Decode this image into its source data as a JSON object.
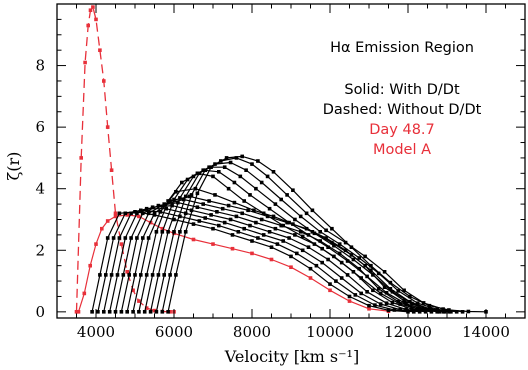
{
  "chart_data": {
    "type": "line",
    "title": "",
    "xlabel": "Velocity [km s⁻¹]",
    "ylabel": "ζ(r)",
    "xlim": [
      3000,
      15000
    ],
    "ylim": [
      -0.2,
      10
    ],
    "xticks": [
      4000,
      6000,
      8000,
      10000,
      12000,
      14000
    ],
    "yticks": [
      0,
      2,
      4,
      6,
      8
    ],
    "grid": false,
    "legend_position": "top-right",
    "annotations": [
      {
        "text": "Hα Emission Region",
        "color": "#000000"
      },
      {
        "text": "Solid: With D/Dt",
        "color": "#000000"
      },
      {
        "text": "Dashed: Without D/Dt",
        "color": "#000000"
      },
      {
        "text": "Day 48.7",
        "color": "#e8303a"
      },
      {
        "text": "Model A",
        "color": "#e8303a"
      }
    ],
    "series": [
      {
        "color": "#e8303a",
        "style": "dashed",
        "marker": "square",
        "x": [
          3500,
          3620,
          3720,
          3800,
          3860,
          3920,
          4000,
          4100,
          4200,
          4300,
          4400,
          4500,
          4650,
          4800,
          4950,
          5100,
          5300,
          5500,
          5700,
          5900,
          6000
        ],
        "y": [
          0,
          5.0,
          8.1,
          9.3,
          9.8,
          9.9,
          9.5,
          8.5,
          7.5,
          6.0,
          4.6,
          3.2,
          2.2,
          1.3,
          0.7,
          0.35,
          0.12,
          0.04,
          0.01,
          0,
          0
        ]
      },
      {
        "color": "#e8303a",
        "style": "solid",
        "marker": "square",
        "x": [
          3550,
          3700,
          3850,
          4000,
          4150,
          4300,
          4500,
          4800,
          5100,
          5400,
          5700,
          6000,
          6500,
          7000,
          7500,
          8000,
          8500,
          9000,
          9500,
          10000,
          10500,
          11000,
          11500
        ],
        "y": [
          0,
          0.6,
          1.5,
          2.2,
          2.7,
          2.95,
          3.1,
          3.15,
          3.1,
          2.9,
          2.7,
          2.55,
          2.35,
          2.2,
          2.05,
          1.9,
          1.7,
          1.45,
          1.1,
          0.7,
          0.35,
          0.1,
          0.02
        ]
      },
      {
        "color": "#000000",
        "style": "solid",
        "marker": "square",
        "x": [
          3900,
          4100,
          4300,
          4600,
          5000,
          5500,
          6000,
          6500,
          7000,
          7500,
          8000,
          8500,
          9000,
          9500,
          10000,
          10500,
          11000,
          11500,
          12000
        ],
        "y": [
          0,
          1.2,
          2.4,
          3.2,
          3.25,
          3.15,
          3.0,
          2.85,
          2.7,
          2.5,
          2.3,
          2.1,
          1.8,
          1.4,
          0.9,
          0.5,
          0.2,
          0.05,
          0
        ]
      },
      {
        "color": "#000000",
        "style": "solid",
        "marker": "square",
        "x": [
          4050,
          4250,
          4450,
          4750,
          5150,
          5650,
          6150,
          6650,
          7150,
          7650,
          8150,
          8650,
          9150,
          9650,
          10150,
          10650,
          11150,
          11650,
          12150
        ],
        "y": [
          0,
          1.2,
          2.4,
          3.2,
          3.3,
          3.25,
          3.1,
          2.95,
          2.8,
          2.6,
          2.4,
          2.2,
          1.9,
          1.5,
          1.0,
          0.55,
          0.22,
          0.06,
          0
        ]
      },
      {
        "color": "#000000",
        "style": "solid",
        "marker": "square",
        "x": [
          4200,
          4400,
          4600,
          4900,
          5300,
          5800,
          6300,
          6800,
          7300,
          7800,
          8300,
          8800,
          9300,
          9800,
          10300,
          10800,
          11300,
          11800,
          12300
        ],
        "y": [
          0,
          1.2,
          2.4,
          3.2,
          3.35,
          3.35,
          3.2,
          3.05,
          2.9,
          2.7,
          2.5,
          2.3,
          2.0,
          1.6,
          1.1,
          0.6,
          0.25,
          0.07,
          0
        ]
      },
      {
        "color": "#000000",
        "style": "solid",
        "marker": "square",
        "x": [
          4350,
          4550,
          4750,
          5050,
          5450,
          5950,
          6450,
          6950,
          7450,
          7950,
          8450,
          8950,
          9450,
          9950,
          10450,
          10950,
          11450,
          11950,
          12450
        ],
        "y": [
          0,
          1.2,
          2.4,
          3.2,
          3.4,
          3.45,
          3.3,
          3.15,
          3.0,
          2.8,
          2.6,
          2.4,
          2.1,
          1.7,
          1.2,
          0.65,
          0.28,
          0.08,
          0
        ]
      },
      {
        "color": "#000000",
        "style": "solid",
        "marker": "square",
        "x": [
          4500,
          4700,
          4900,
          5200,
          5600,
          6100,
          6600,
          7100,
          7600,
          8100,
          8600,
          9100,
          9600,
          10100,
          10600,
          11100,
          11600,
          12100,
          12600
        ],
        "y": [
          0,
          1.2,
          2.4,
          3.2,
          3.45,
          3.55,
          3.4,
          3.25,
          3.1,
          2.9,
          2.7,
          2.5,
          2.2,
          1.8,
          1.3,
          0.7,
          0.3,
          0.09,
          0
        ]
      },
      {
        "color": "#000000",
        "style": "solid",
        "marker": "square",
        "x": [
          4650,
          4850,
          5050,
          5350,
          5750,
          6250,
          6750,
          7250,
          7750,
          8250,
          8750,
          9250,
          9750,
          10250,
          10750,
          11250,
          11750,
          12250,
          12750
        ],
        "y": [
          0,
          1.2,
          2.4,
          3.2,
          3.5,
          3.65,
          3.5,
          3.35,
          3.2,
          3.0,
          2.8,
          2.6,
          2.3,
          1.9,
          1.4,
          0.75,
          0.33,
          0.1,
          0
        ]
      },
      {
        "color": "#000000",
        "style": "solid",
        "marker": "square",
        "x": [
          4800,
          5000,
          5200,
          5500,
          5900,
          6400,
          6900,
          7400,
          7900,
          8400,
          8900,
          9400,
          9900,
          10400,
          10900,
          11400,
          11900,
          12400,
          12900
        ],
        "y": [
          0,
          1.2,
          2.4,
          3.2,
          3.6,
          3.75,
          3.6,
          3.45,
          3.3,
          3.1,
          2.9,
          2.7,
          2.4,
          2.0,
          1.5,
          0.8,
          0.36,
          0.11,
          0
        ]
      },
      {
        "color": "#000000",
        "style": "solid",
        "marker": "square",
        "x": [
          4950,
          5150,
          5350,
          5650,
          6050,
          6550,
          7050,
          7550,
          8050,
          8550,
          9050,
          9550,
          10050,
          10550,
          11050,
          11550,
          12050,
          12550,
          13050
        ],
        "y": [
          0,
          1.2,
          2.4,
          3.25,
          3.9,
          4.0,
          3.8,
          3.55,
          3.3,
          3.1,
          2.85,
          2.6,
          2.25,
          1.85,
          1.35,
          0.75,
          0.33,
          0.1,
          0
        ]
      },
      {
        "color": "#000000",
        "style": "solid",
        "marker": "square",
        "x": [
          5100,
          5300,
          5550,
          5850,
          6200,
          6600,
          7000,
          7400,
          7800,
          8300,
          8800,
          9300,
          9800,
          10300,
          10800,
          11300,
          11800,
          12300,
          12800
        ],
        "y": [
          0,
          1.2,
          2.6,
          3.6,
          4.2,
          4.5,
          4.4,
          4.0,
          3.6,
          3.2,
          2.8,
          2.45,
          2.05,
          1.6,
          1.1,
          0.6,
          0.25,
          0.07,
          0
        ]
      },
      {
        "color": "#000000",
        "style": "solid",
        "marker": "square",
        "x": [
          5250,
          5450,
          5700,
          6000,
          6350,
          6750,
          7150,
          7550,
          7950,
          8450,
          8950,
          9450,
          9950,
          10450,
          10950,
          11450,
          11950,
          12450,
          12950
        ],
        "y": [
          0,
          1.2,
          2.6,
          3.65,
          4.3,
          4.6,
          4.55,
          4.2,
          3.8,
          3.35,
          2.9,
          2.5,
          2.1,
          1.65,
          1.15,
          0.62,
          0.26,
          0.07,
          0
        ]
      },
      {
        "color": "#000000",
        "style": "solid",
        "marker": "square",
        "x": [
          5400,
          5600,
          5850,
          6150,
          6500,
          6900,
          7300,
          7700,
          8100,
          8600,
          9100,
          9600,
          10100,
          10600,
          11100,
          11600,
          12100,
          12600,
          13100
        ],
        "y": [
          0,
          1.2,
          2.6,
          3.7,
          4.4,
          4.7,
          4.7,
          4.4,
          4.0,
          3.5,
          3.0,
          2.55,
          2.15,
          1.7,
          1.2,
          0.65,
          0.27,
          0.08,
          0
        ]
      },
      {
        "color": "#000000",
        "style": "solid",
        "marker": "square",
        "x": [
          5550,
          5750,
          6000,
          6300,
          6650,
          7050,
          7450,
          7850,
          8250,
          8750,
          9250,
          9750,
          10250,
          10750,
          11250,
          11750,
          12250,
          12750,
          13250
        ],
        "y": [
          0,
          1.2,
          2.6,
          3.75,
          4.5,
          4.8,
          4.85,
          4.6,
          4.2,
          3.65,
          3.1,
          2.6,
          2.2,
          1.75,
          1.25,
          0.68,
          0.28,
          0.08,
          0
        ]
      },
      {
        "color": "#000000",
        "style": "solid",
        "marker": "square",
        "x": [
          5700,
          5900,
          6150,
          6450,
          6800,
          7200,
          7600,
          8000,
          8400,
          8900,
          9400,
          9900,
          10400,
          10900,
          11400,
          11900,
          12400,
          12900,
          13400
        ],
        "y": [
          0,
          1.2,
          2.6,
          3.8,
          4.6,
          4.9,
          5.0,
          4.8,
          4.4,
          3.8,
          3.2,
          2.65,
          2.25,
          1.8,
          1.3,
          0.7,
          0.29,
          0.09,
          0
        ]
      },
      {
        "color": "#000000",
        "style": "solid",
        "marker": "square",
        "x": [
          5850,
          6050,
          6300,
          6600,
          6950,
          7350,
          7750,
          8150,
          8550,
          9050,
          9550,
          10050,
          10550,
          11050,
          11550,
          12050,
          12550,
          13050,
          13550,
          14000
        ],
        "y": [
          0,
          1.2,
          2.6,
          3.85,
          4.7,
          5.0,
          5.05,
          4.9,
          4.55,
          3.95,
          3.3,
          2.7,
          2.1,
          1.5,
          0.95,
          0.5,
          0.2,
          0.06,
          0.01,
          0
        ]
      }
    ]
  }
}
